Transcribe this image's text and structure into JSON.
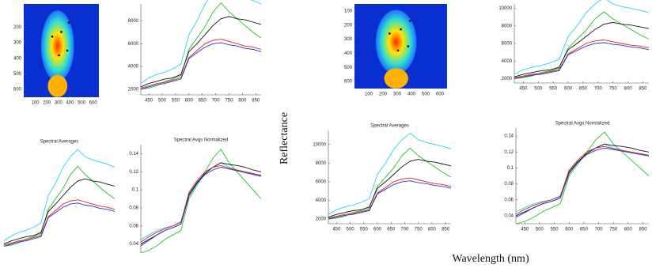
{
  "ylabel": "Reflectance",
  "xlabel": "Wavelength (nm)",
  "chart_data": [
    {
      "type": "image",
      "xlim": [
        0,
        650
      ],
      "ylim": [
        650,
        50
      ],
      "xticks": [
        100,
        200,
        300,
        400,
        500,
        600
      ],
      "yticks": [
        200,
        300,
        400,
        500,
        600
      ]
    },
    {
      "type": "line",
      "x": [
        420,
        450,
        480,
        510,
        540,
        570,
        600,
        630,
        660,
        690,
        720,
        750,
        780,
        810,
        840,
        870
      ],
      "xlim": [
        420,
        870
      ],
      "ylim": [
        1500,
        9500
      ],
      "xticks": [
        450,
        500,
        550,
        600,
        650,
        700,
        750,
        800,
        850
      ],
      "yticks": [
        2000,
        4000,
        6000,
        8000
      ],
      "series": [
        {
          "color": "#22d8f0",
          "values": [
            2500,
            3000,
            3300,
            3500,
            3800,
            4200,
            6800,
            8000,
            9500,
            10500,
            11200,
            10500,
            10200,
            10000,
            9800,
            9500
          ]
        },
        {
          "color": "#22c022",
          "values": [
            2000,
            2100,
            2300,
            2700,
            2900,
            3200,
            5500,
            6500,
            7500,
            8800,
            9600,
            8800,
            8200,
            7600,
            7000,
            6500
          ]
        },
        {
          "color": "#111111",
          "values": [
            2200,
            2500,
            2700,
            2900,
            3000,
            3300,
            5300,
            6000,
            6800,
            7600,
            8200,
            8400,
            8200,
            8100,
            7900,
            7700
          ]
        },
        {
          "color": "#e02020",
          "values": [
            2100,
            2300,
            2500,
            2600,
            2800,
            3000,
            4800,
            5400,
            6000,
            6300,
            6400,
            6200,
            6000,
            5800,
            5700,
            5500
          ]
        },
        {
          "color": "#2030d0",
          "values": [
            2000,
            2200,
            2400,
            2500,
            2700,
            2900,
            4700,
            5200,
            5700,
            6000,
            6100,
            5900,
            5800,
            5600,
            5500,
            5300
          ]
        }
      ]
    },
    {
      "type": "line",
      "title": "Spectral Averages",
      "x": [
        420,
        450,
        480,
        510,
        540,
        570,
        600,
        630,
        660,
        690,
        720,
        750,
        780,
        810,
        840,
        870
      ],
      "xlim": [
        420,
        870
      ],
      "ylim": [
        1500,
        11500
      ],
      "series": [
        {
          "color": "#22d8f0",
          "values": [
            2500,
            3000,
            3300,
            3500,
            3800,
            4200,
            6800,
            8000,
            9500,
            10500,
            11200,
            10500,
            10200,
            10000,
            9800,
            9500
          ]
        },
        {
          "color": "#22c022",
          "values": [
            2000,
            2100,
            2300,
            2700,
            2900,
            3200,
            5500,
            6500,
            7500,
            8800,
            9600,
            8800,
            8200,
            7600,
            7000,
            6500
          ]
        },
        {
          "color": "#111111",
          "values": [
            2200,
            2500,
            2700,
            2900,
            3000,
            3300,
            5300,
            6000,
            6800,
            7600,
            8200,
            8400,
            8200,
            8100,
            7900,
            7700
          ]
        },
        {
          "color": "#e02020",
          "values": [
            2100,
            2300,
            2500,
            2600,
            2800,
            3000,
            4800,
            5400,
            6000,
            6300,
            6400,
            6200,
            6000,
            5800,
            5700,
            5500
          ]
        },
        {
          "color": "#2030d0",
          "values": [
            2000,
            2200,
            2400,
            2500,
            2700,
            2900,
            4700,
            5200,
            5700,
            6000,
            6100,
            5900,
            5800,
            5600,
            5500,
            5300
          ]
        }
      ]
    },
    {
      "type": "line",
      "title": "Spectral Avgs Normalized",
      "x": [
        420,
        450,
        480,
        510,
        540,
        570,
        600,
        630,
        660,
        690,
        720,
        750,
        780,
        810,
        840,
        870
      ],
      "xlim": [
        420,
        870
      ],
      "ylim": [
        0.03,
        0.15
      ],
      "yticks": [
        0.04,
        0.06,
        0.08,
        0.1,
        0.12,
        0.14
      ],
      "series": [
        {
          "color": "#22d8f0",
          "values": [
            0.045,
            0.05,
            0.055,
            0.058,
            0.06,
            0.065,
            0.095,
            0.108,
            0.118,
            0.125,
            0.13,
            0.125,
            0.122,
            0.12,
            0.118,
            0.115
          ]
        },
        {
          "color": "#22c022",
          "values": [
            0.03,
            0.033,
            0.038,
            0.045,
            0.05,
            0.055,
            0.09,
            0.105,
            0.12,
            0.135,
            0.145,
            0.13,
            0.12,
            0.11,
            0.1,
            0.09
          ]
        },
        {
          "color": "#111111",
          "values": [
            0.04,
            0.045,
            0.05,
            0.055,
            0.058,
            0.062,
            0.095,
            0.108,
            0.118,
            0.125,
            0.13,
            0.128,
            0.127,
            0.125,
            0.122,
            0.12
          ]
        },
        {
          "color": "#e02020",
          "values": [
            0.042,
            0.048,
            0.053,
            0.057,
            0.06,
            0.064,
            0.097,
            0.11,
            0.12,
            0.125,
            0.127,
            0.124,
            0.122,
            0.12,
            0.118,
            0.116
          ]
        },
        {
          "color": "#2030d0",
          "values": [
            0.038,
            0.044,
            0.05,
            0.055,
            0.058,
            0.062,
            0.093,
            0.107,
            0.117,
            0.122,
            0.125,
            0.123,
            0.121,
            0.119,
            0.117,
            0.115
          ]
        }
      ]
    },
    {
      "type": "image",
      "xlim": [
        0,
        650
      ],
      "ylim": [
        650,
        50
      ],
      "xticks": [
        100,
        200,
        300,
        400,
        500,
        600
      ],
      "yticks": [
        100,
        200,
        300,
        400,
        500,
        600
      ]
    },
    {
      "type": "line",
      "x": [
        420,
        450,
        480,
        510,
        540,
        570,
        600,
        630,
        660,
        690,
        720,
        750,
        780,
        810,
        840,
        870
      ],
      "xlim": [
        420,
        870
      ],
      "ylim": [
        1500,
        10500
      ],
      "xticks": [
        450,
        500,
        550,
        600,
        650,
        700,
        750,
        800,
        850
      ],
      "yticks": [
        2000,
        4000,
        6000,
        8000,
        10000
      ],
      "series": [
        {
          "color": "#22d8f0",
          "values": [
            2500,
            3000,
            3300,
            3500,
            3800,
            4200,
            6800,
            8000,
            9500,
            10500,
            11200,
            10500,
            10200,
            10000,
            9800,
            9500
          ]
        },
        {
          "color": "#22c022",
          "values": [
            2000,
            2100,
            2300,
            2700,
            2900,
            3200,
            5500,
            6500,
            7500,
            8800,
            9600,
            8800,
            8200,
            7600,
            7000,
            6500
          ]
        },
        {
          "color": "#111111",
          "values": [
            2200,
            2500,
            2700,
            2900,
            3000,
            3300,
            5300,
            6000,
            6800,
            7600,
            8200,
            8400,
            8200,
            8100,
            7900,
            7700
          ]
        },
        {
          "color": "#e02020",
          "values": [
            2100,
            2300,
            2500,
            2600,
            2800,
            3000,
            4800,
            5400,
            6000,
            6300,
            6400,
            6200,
            6000,
            5800,
            5700,
            5500
          ]
        },
        {
          "color": "#2030d0",
          "values": [
            2000,
            2200,
            2400,
            2500,
            2700,
            2900,
            4700,
            5200,
            5700,
            6000,
            6100,
            5900,
            5800,
            5600,
            5500,
            5300
          ]
        }
      ]
    },
    {
      "type": "line",
      "title": "Spectral Averages",
      "x": [
        420,
        450,
        480,
        510,
        540,
        570,
        600,
        630,
        660,
        690,
        720,
        750,
        780,
        810,
        840,
        870
      ],
      "xlim": [
        420,
        870
      ],
      "ylim": [
        1500,
        11500
      ],
      "xticks": [
        450,
        500,
        550,
        600,
        650,
        700,
        750,
        800,
        850
      ],
      "yticks": [
        2000,
        4000,
        6000,
        8000,
        10000
      ],
      "series": [
        {
          "color": "#22d8f0",
          "values": [
            2500,
            3000,
            3300,
            3500,
            3800,
            4200,
            6800,
            8000,
            9500,
            10500,
            11200,
            10500,
            10200,
            10000,
            9800,
            9500
          ]
        },
        {
          "color": "#22c022",
          "values": [
            2000,
            2100,
            2300,
            2700,
            2900,
            3200,
            5500,
            6500,
            7500,
            8800,
            9600,
            8800,
            8200,
            7600,
            7000,
            6500
          ]
        },
        {
          "color": "#111111",
          "values": [
            2200,
            2500,
            2700,
            2900,
            3000,
            3300,
            5300,
            6000,
            6800,
            7600,
            8200,
            8400,
            8200,
            8100,
            7900,
            7700
          ]
        },
        {
          "color": "#e02020",
          "values": [
            2100,
            2300,
            2500,
            2600,
            2800,
            3000,
            4800,
            5400,
            6000,
            6300,
            6400,
            6200,
            6000,
            5800,
            5700,
            5500
          ]
        },
        {
          "color": "#2030d0",
          "values": [
            2000,
            2200,
            2400,
            2500,
            2700,
            2900,
            4700,
            5200,
            5700,
            6000,
            6100,
            5900,
            5800,
            5600,
            5500,
            5300
          ]
        }
      ]
    },
    {
      "type": "line",
      "title": "Spectral Avgs Normalized",
      "x": [
        420,
        450,
        480,
        510,
        540,
        570,
        600,
        630,
        660,
        690,
        720,
        750,
        780,
        810,
        840,
        870
      ],
      "xlim": [
        420,
        870
      ],
      "ylim": [
        0.03,
        0.15
      ],
      "xticks": [
        450,
        500,
        550,
        600,
        650,
        700,
        750,
        800,
        850
      ],
      "yticks": [
        0.04,
        0.06,
        0.08,
        0.1,
        0.12,
        0.14
      ],
      "series": [
        {
          "color": "#22d8f0",
          "values": [
            0.045,
            0.05,
            0.055,
            0.058,
            0.06,
            0.065,
            0.095,
            0.108,
            0.118,
            0.125,
            0.13,
            0.125,
            0.122,
            0.12,
            0.118,
            0.115
          ]
        },
        {
          "color": "#22c022",
          "values": [
            0.03,
            0.033,
            0.038,
            0.045,
            0.05,
            0.055,
            0.09,
            0.105,
            0.12,
            0.135,
            0.145,
            0.13,
            0.12,
            0.11,
            0.1,
            0.09
          ]
        },
        {
          "color": "#111111",
          "values": [
            0.04,
            0.045,
            0.05,
            0.055,
            0.058,
            0.062,
            0.095,
            0.108,
            0.118,
            0.125,
            0.13,
            0.128,
            0.127,
            0.125,
            0.122,
            0.12
          ]
        },
        {
          "color": "#e02020",
          "values": [
            0.042,
            0.048,
            0.053,
            0.057,
            0.06,
            0.064,
            0.097,
            0.11,
            0.12,
            0.125,
            0.127,
            0.124,
            0.122,
            0.12,
            0.118,
            0.116
          ]
        },
        {
          "color": "#2030d0",
          "values": [
            0.038,
            0.044,
            0.05,
            0.055,
            0.058,
            0.062,
            0.093,
            0.107,
            0.117,
            0.122,
            0.125,
            0.123,
            0.121,
            0.119,
            0.117,
            0.115
          ]
        }
      ]
    }
  ]
}
